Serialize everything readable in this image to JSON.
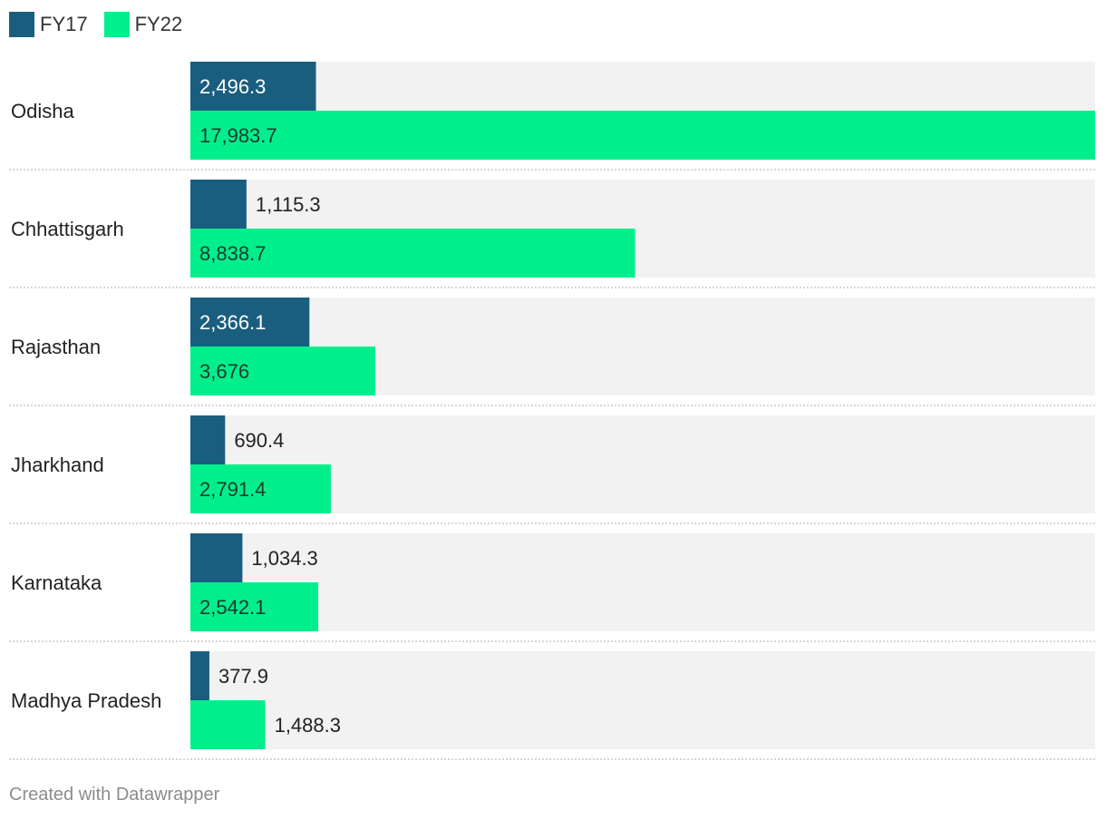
{
  "chart_data": {
    "type": "bar",
    "orientation": "horizontal",
    "categories": [
      "Odisha",
      "Chhattisgarh",
      "Rajasthan",
      "Jharkhand",
      "Karnataka",
      "Madhya Pradesh"
    ],
    "series": [
      {
        "name": "FY17",
        "color": "#1a5e7f",
        "values": [
          2496.3,
          1115.3,
          2366.1,
          690.4,
          1034.3,
          377.9
        ],
        "labels": [
          "2,496.3",
          "1,115.3",
          "2,366.1",
          "690.4",
          "1,034.3",
          "377.9"
        ]
      },
      {
        "name": "FY22",
        "color": "#00ef8c",
        "values": [
          17983.7,
          8838.7,
          3676,
          2791.4,
          2542.1,
          1488.3
        ],
        "labels": [
          "17,983.7",
          "8,838.7",
          "3,676",
          "2,791.4",
          "2,542.1",
          "1,488.3"
        ]
      }
    ],
    "xlim": [
      0,
      17983.7
    ],
    "grid": false,
    "legend_position": "top-left",
    "background_bar_color": "#f2f2f2"
  },
  "footer": {
    "credit": "Created with Datawrapper"
  }
}
